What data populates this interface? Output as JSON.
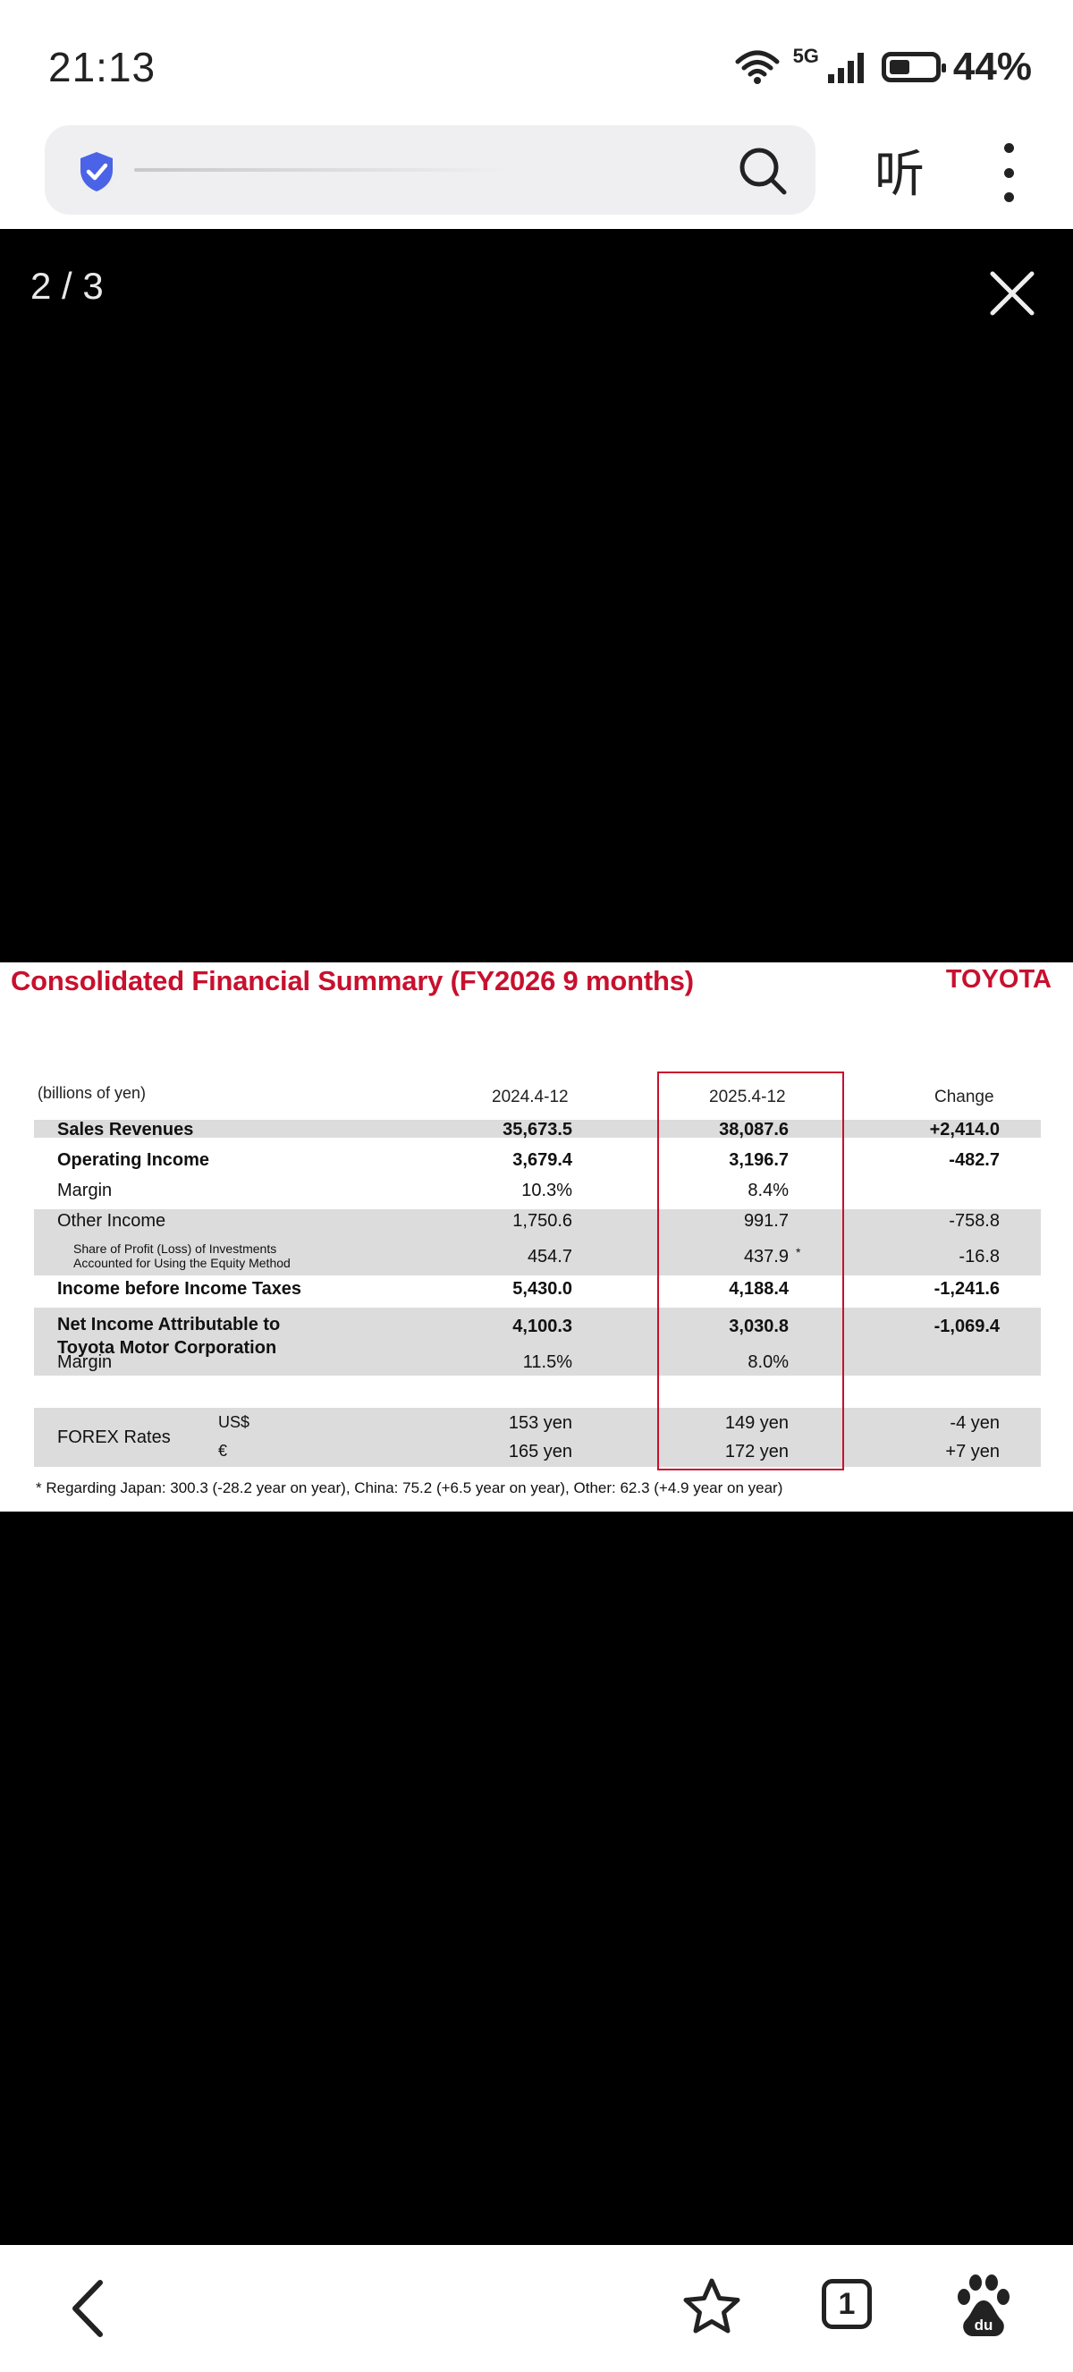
{
  "status": {
    "time": "21:13",
    "network": "5G",
    "battery": "44%"
  },
  "toolbar": {
    "listen_label": "听"
  },
  "viewer": {
    "counter": "2 / 3"
  },
  "slide": {
    "title": "Consolidated Financial Summary (FY2026 9 months)",
    "brand": "TOYOTA",
    "units": "(billions of yen)",
    "columns": [
      "2024.4-12",
      "2025.4-12",
      "Change"
    ],
    "rows": [
      {
        "label": "Sales Revenues",
        "prev": "35,673.5",
        "curr": "38,087.6",
        "change": "+2,414.0"
      },
      {
        "label": "Operating Income",
        "prev": "3,679.4",
        "curr": "3,196.7",
        "change": "-482.7"
      },
      {
        "label": "Margin",
        "prev": "10.3%",
        "curr": "8.4%",
        "change": ""
      },
      {
        "label": "Other Income",
        "prev": "1,750.6",
        "curr": "991.7",
        "change": "-758.8"
      },
      {
        "label_line1": "Share of Profit (Loss) of Investments",
        "label_line2": "Accounted for Using the Equity Method",
        "prev": "454.7",
        "curr": "437.9",
        "asterisk": "*",
        "change": "-16.8"
      },
      {
        "label": "Income before Income Taxes",
        "prev": "5,430.0",
        "curr": "4,188.4",
        "change": "-1,241.6"
      },
      {
        "label_line1": "Net Income Attributable to",
        "label_line2": "Toyota Motor Corporation",
        "prev": "4,100.3",
        "curr": "3,030.8",
        "change": "-1,069.4"
      },
      {
        "label": "Margin",
        "prev": "11.5%",
        "curr": "8.0%",
        "change": ""
      }
    ],
    "forex": {
      "label": "FOREX Rates",
      "usd": {
        "currency": "US$",
        "prev": "153 yen",
        "curr": "149 yen",
        "change": "-4 yen"
      },
      "eur": {
        "currency": "€",
        "prev": "165 yen",
        "curr": "172 yen",
        "change": "+7 yen"
      }
    },
    "footnote": "* Regarding Japan: 300.3 (-28.2 year on year), China: 75.2  (+6.5 year on year), Other: 62.3 (+4.9 year on year)"
  },
  "bottom_nav": {
    "tabs_count": "1"
  },
  "colors": {
    "accent_red": "#c8102e",
    "row_gray": "#dcdcdc",
    "shield_blue": "#4a63e7"
  }
}
